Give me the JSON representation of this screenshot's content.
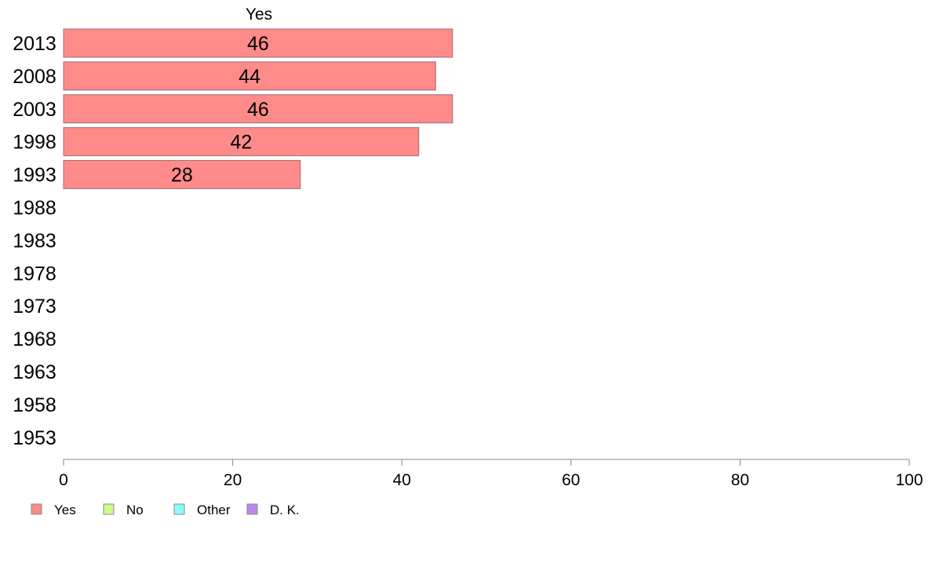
{
  "chart_data": {
    "type": "bar",
    "orientation": "horizontal",
    "categories": [
      "2013",
      "2008",
      "2003",
      "1998",
      "1993",
      "1988",
      "1983",
      "1978",
      "1973",
      "1968",
      "1963",
      "1958",
      "1953"
    ],
    "series": [
      {
        "name": "Yes",
        "color": "#ff8a8a",
        "values": [
          46,
          44,
          46,
          42,
          28,
          null,
          null,
          null,
          null,
          null,
          null,
          null,
          null
        ]
      }
    ],
    "column_title": "Yes",
    "xlim": [
      0,
      100
    ],
    "xticks": [
      0,
      20,
      40,
      60,
      80,
      100
    ],
    "grid": false,
    "legend": {
      "placement": "bottom-left",
      "entries": [
        {
          "label": "Yes",
          "color": "#ff8a8a"
        },
        {
          "label": "No",
          "color": "#ccff88"
        },
        {
          "label": "Other",
          "color": "#88ffff"
        },
        {
          "label": "D. K.",
          "color": "#bb88ee"
        }
      ]
    }
  }
}
